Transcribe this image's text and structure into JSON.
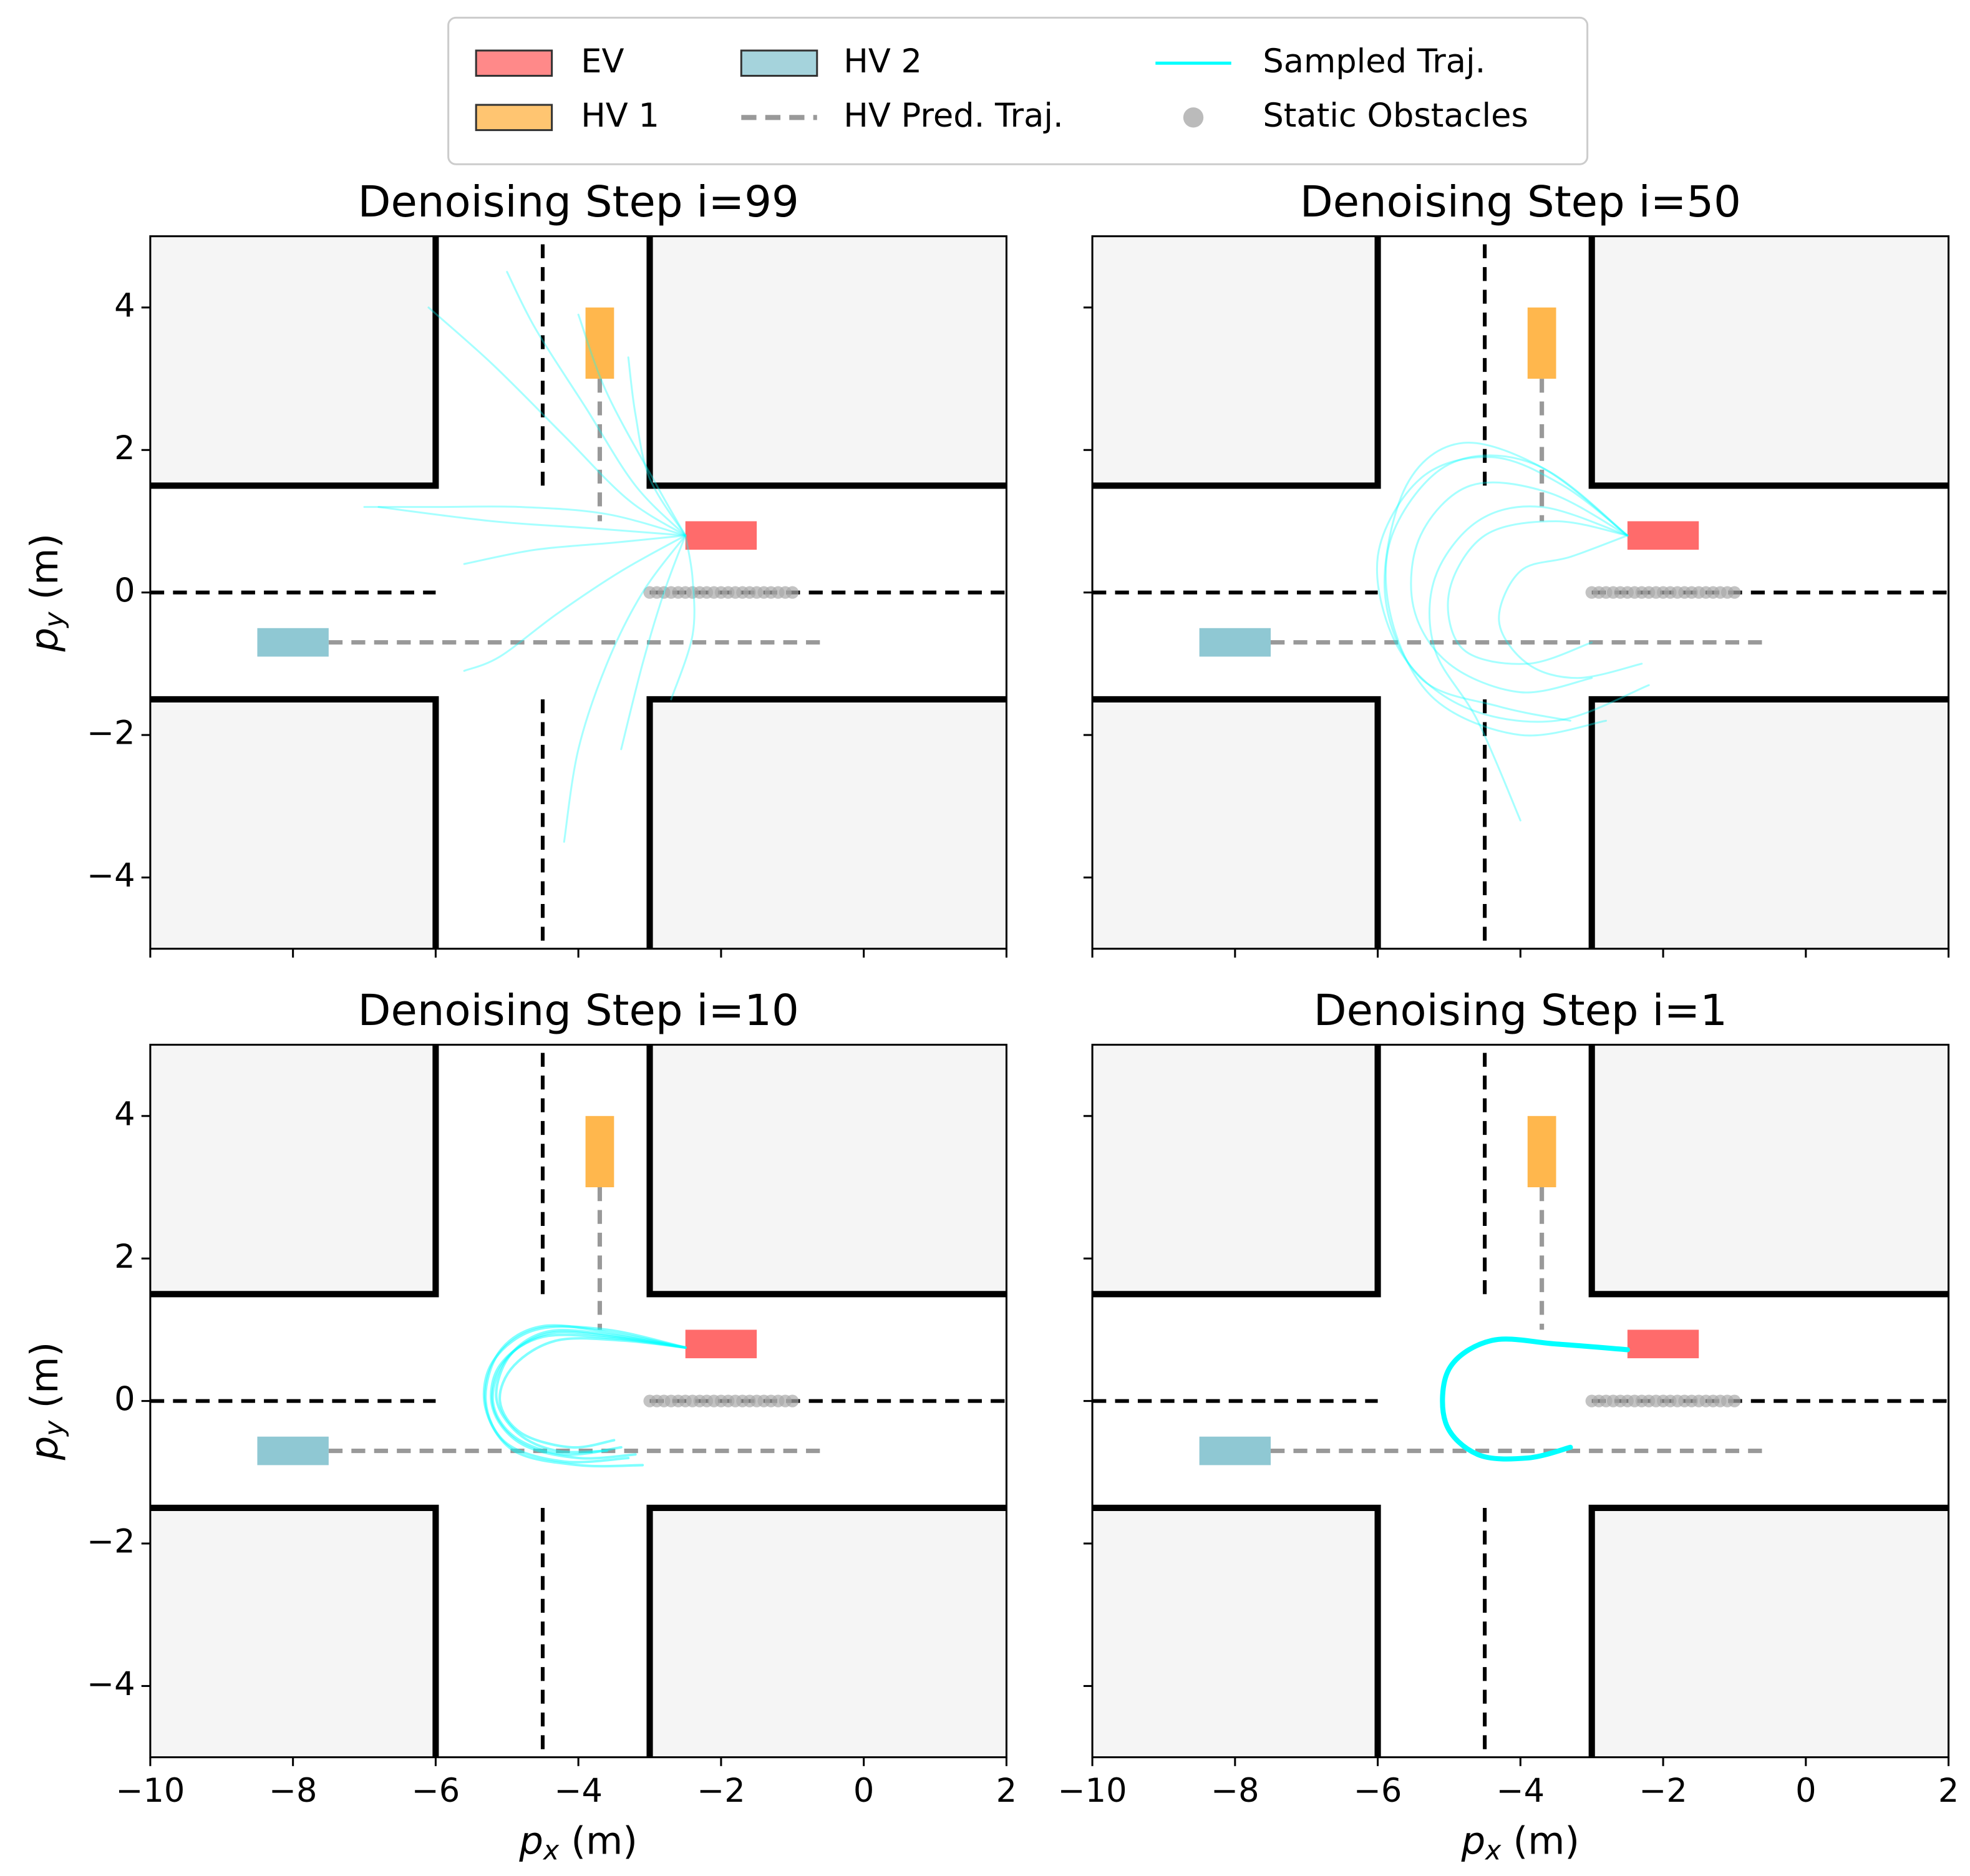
{
  "legend": [
    {
      "name": "EV",
      "color": "#ff6b6b",
      "kind": "patch"
    },
    {
      "name": "HV 1",
      "color": "#ffb74d",
      "kind": "patch"
    },
    {
      "name": "HV 2",
      "color": "#8fc8d3",
      "kind": "patch"
    },
    {
      "name": "HV Pred. Traj.",
      "color": "#999999",
      "kind": "dashed"
    },
    {
      "name": "Sampled Traj.",
      "color": "#00ffff",
      "kind": "line"
    },
    {
      "name": "Static Obstacles",
      "color": "#aaaaaa",
      "kind": "marker"
    }
  ],
  "scene": {
    "blocks": [
      [
        -10,
        -6,
        1.5,
        5
      ],
      [
        -3,
        2,
        1.5,
        5
      ],
      [
        -10,
        -6,
        -5,
        -1.5
      ],
      [
        -3,
        2,
        -5,
        -1.5
      ]
    ],
    "curbs": [
      {
        "x": [
          -10,
          -6,
          -6
        ],
        "y": [
          1.5,
          1.5,
          5
        ]
      },
      {
        "x": [
          2,
          -3,
          -3
        ],
        "y": [
          1.5,
          1.5,
          5
        ]
      },
      {
        "x": [
          -10,
          -6,
          -6
        ],
        "y": [
          -1.5,
          -1.5,
          -5
        ]
      },
      {
        "x": [
          2,
          -3,
          -3
        ],
        "y": [
          -1.5,
          -1.5,
          -5
        ]
      }
    ],
    "lanes": [
      {
        "x": [
          -10,
          -6
        ],
        "y": [
          0,
          0
        ]
      },
      {
        "x": [
          -3,
          2
        ],
        "y": [
          0,
          0
        ]
      },
      {
        "x": [
          -4.5,
          -4.5
        ],
        "y": [
          1.5,
          5
        ]
      },
      {
        "x": [
          -4.5,
          -4.5
        ],
        "y": [
          -1.5,
          -5
        ]
      }
    ],
    "vehicles": [
      {
        "legend": 0,
        "x": [
          -2.5,
          -1.5
        ],
        "y": [
          0.6,
          1.0
        ]
      },
      {
        "legend": 1,
        "x": [
          -3.9,
          -3.5
        ],
        "y": [
          3,
          4
        ]
      },
      {
        "legend": 2,
        "x": [
          -8.5,
          -7.5
        ],
        "y": [
          -0.9,
          -0.5
        ]
      }
    ],
    "predictions": [
      {
        "x": [
          -3.7,
          -3.7
        ],
        "y": [
          3,
          1
        ]
      },
      {
        "x": [
          -7.5,
          -0.6
        ],
        "y": [
          -0.7,
          -0.7
        ]
      }
    ],
    "obstacles": {
      "x": [
        -3.0,
        -2.9,
        -2.8,
        -2.7,
        -2.6,
        -2.5,
        -2.4,
        -2.3,
        -2.2,
        -2.1,
        -2.0,
        -1.9,
        -1.8,
        -1.7,
        -1.6,
        -1.5,
        -1.4,
        -1.3,
        -1.2,
        -1.1,
        -1.0
      ],
      "y": [
        0,
        0,
        0,
        0,
        0,
        0,
        0,
        0,
        0,
        0,
        0,
        0,
        0,
        0,
        0,
        0,
        0,
        0,
        0,
        0,
        0
      ]
    }
  },
  "chart_data": [
    {
      "type": "line",
      "title": "Denoising Step i=99",
      "xlim": [
        -10,
        2
      ],
      "ylim": [
        -5,
        5
      ],
      "xticks": [
        -10,
        -8,
        -6,
        -4,
        -2,
        0,
        2
      ],
      "yticks": [
        {
          "value": -4,
          "label": "−4"
        },
        {
          "value": -2,
          "label": "−2"
        },
        0,
        2,
        4
      ],
      "ylabel": [
        "p",
        "y",
        " (m)"
      ],
      "alpha": 0.35,
      "width": 1.5,
      "series": [
        {
          "x": [
            -2.5,
            -3.3,
            -4.2,
            -5.2,
            -6.1
          ],
          "y": [
            0.8,
            1.3,
            2.2,
            3.2,
            4.0
          ]
        },
        {
          "x": [
            -2.5,
            -3.2,
            -3.9,
            -4.6,
            -5.0
          ],
          "y": [
            0.8,
            1.5,
            2.6,
            3.7,
            4.5
          ]
        },
        {
          "x": [
            -2.5,
            -3.0,
            -3.2,
            -3.3
          ],
          "y": [
            0.8,
            1.6,
            2.5,
            3.3
          ]
        },
        {
          "x": [
            -2.5,
            -3.6,
            -4.8,
            -6.0,
            -7.0
          ],
          "y": [
            0.8,
            1.1,
            1.2,
            1.2,
            1.2
          ]
        },
        {
          "x": [
            -2.5,
            -3.5,
            -4.6,
            -5.6
          ],
          "y": [
            0.8,
            0.7,
            0.6,
            0.4
          ]
        },
        {
          "x": [
            -2.5,
            -3.4,
            -4.3,
            -5.1,
            -5.6
          ],
          "y": [
            0.8,
            0.3,
            -0.3,
            -0.9,
            -1.1
          ]
        },
        {
          "x": [
            -2.5,
            -3.1,
            -3.6,
            -4.0,
            -4.2
          ],
          "y": [
            0.8,
            0.0,
            -1.0,
            -2.2,
            -3.5
          ]
        },
        {
          "x": [
            -2.5,
            -2.8,
            -3.1,
            -3.4
          ],
          "y": [
            0.8,
            0.0,
            -1.0,
            -2.2
          ]
        },
        {
          "x": [
            -2.5,
            -2.4,
            -2.4,
            -2.7
          ],
          "y": [
            0.8,
            0.2,
            -0.6,
            -1.5
          ]
        },
        {
          "x": [
            -2.5,
            -2.9,
            -3.6,
            -4.0
          ],
          "y": [
            0.8,
            1.5,
            2.8,
            3.9
          ]
        },
        {
          "x": [
            -2.5,
            -3.8,
            -5.2,
            -6.8
          ],
          "y": [
            0.8,
            0.9,
            1.0,
            1.2
          ]
        }
      ]
    },
    {
      "type": "line",
      "title": "Denoising Step i=50",
      "xlim": [
        -10,
        2
      ],
      "ylim": [
        -5,
        5
      ],
      "xticks": [
        -10,
        -8,
        -6,
        -4,
        -2,
        0,
        2
      ],
      "yticks": [
        -4,
        -2,
        0,
        2,
        4
      ],
      "alpha": 0.35,
      "width": 1.5,
      "series": [
        {
          "x": [
            -2.5,
            -3.6,
            -4.7,
            -5.4,
            -5.5,
            -5.0,
            -4.0,
            -3.0
          ],
          "y": [
            0.8,
            1.4,
            1.5,
            0.8,
            -0.2,
            -1.0,
            -1.4,
            -1.2
          ]
        },
        {
          "x": [
            -2.5,
            -3.8,
            -5.0,
            -5.8,
            -5.8,
            -5.2,
            -4.0,
            -2.8
          ],
          "y": [
            0.8,
            1.8,
            1.8,
            0.8,
            -0.4,
            -1.5,
            -2.0,
            -1.8
          ]
        },
        {
          "x": [
            -2.5,
            -3.5,
            -4.5,
            -5.0,
            -4.8,
            -3.9,
            -3.0
          ],
          "y": [
            0.8,
            1.0,
            0.8,
            0.0,
            -0.8,
            -1.0,
            -0.7
          ]
        },
        {
          "x": [
            -2.5,
            -3.4,
            -4.4,
            -5.4,
            -6.0,
            -5.7,
            -4.8,
            -3.5,
            -2.2
          ],
          "y": [
            0.8,
            1.5,
            1.9,
            1.6,
            0.5,
            -0.8,
            -1.6,
            -1.8,
            -1.3
          ]
        },
        {
          "x": [
            -2.5,
            -3.7,
            -4.6,
            -5.2,
            -5.2,
            -4.6,
            -4.0
          ],
          "y": [
            0.8,
            1.2,
            1.0,
            0.2,
            -0.8,
            -1.8,
            -3.2
          ]
        },
        {
          "x": [
            -2.5,
            -3.3,
            -4.0,
            -4.3,
            -3.9,
            -3.2,
            -2.3
          ],
          "y": [
            0.8,
            0.5,
            0.3,
            -0.4,
            -1.0,
            -1.2,
            -1.0
          ]
        },
        {
          "x": [
            -2.5,
            -3.6,
            -4.8,
            -5.6,
            -5.9,
            -5.4,
            -4.3,
            -3.3
          ],
          "y": [
            0.8,
            1.7,
            2.1,
            1.5,
            0.0,
            -1.2,
            -1.6,
            -1.8
          ]
        }
      ]
    },
    {
      "type": "line",
      "title": "Denoising Step i=10",
      "xlim": [
        -10,
        2
      ],
      "ylim": [
        -5,
        5
      ],
      "xticks": [
        {
          "value": -10,
          "label": "−10"
        },
        {
          "value": -8,
          "label": "−8"
        },
        {
          "value": -6,
          "label": "−6"
        },
        {
          "value": -4,
          "label": "−4"
        },
        {
          "value": -2,
          "label": "−2"
        },
        0,
        2
      ],
      "yticks": [
        {
          "value": -4,
          "label": "−4"
        },
        {
          "value": -2,
          "label": "−2"
        },
        0,
        2,
        4
      ],
      "xlabel": [
        "p",
        "x",
        " (m)"
      ],
      "ylabel": [
        "p",
        "y",
        " (m)"
      ],
      "alpha": 0.5,
      "width": 2,
      "series": [
        {
          "x": [
            -2.5,
            -3.5,
            -4.4,
            -5.0,
            -5.2,
            -4.9,
            -4.2,
            -3.4
          ],
          "y": [
            0.75,
            0.9,
            0.95,
            0.6,
            0.0,
            -0.5,
            -0.75,
            -0.65
          ]
        },
        {
          "x": [
            -2.5,
            -3.5,
            -4.5,
            -5.1,
            -5.3,
            -5.0,
            -4.2,
            -3.3
          ],
          "y": [
            0.75,
            0.95,
            1.05,
            0.7,
            0.0,
            -0.6,
            -0.85,
            -0.8
          ]
        },
        {
          "x": [
            -2.5,
            -3.4,
            -4.3,
            -4.9,
            -5.1,
            -4.8,
            -4.1,
            -3.5
          ],
          "y": [
            0.75,
            0.85,
            0.85,
            0.5,
            0.0,
            -0.45,
            -0.65,
            -0.55
          ]
        },
        {
          "x": [
            -2.5,
            -3.6,
            -4.6,
            -5.2,
            -5.3,
            -4.9,
            -4.0,
            -3.1
          ],
          "y": [
            0.75,
            1.0,
            1.0,
            0.55,
            -0.1,
            -0.7,
            -0.9,
            -0.9
          ]
        },
        {
          "x": [
            -2.5,
            -3.5,
            -4.4,
            -4.95,
            -5.15,
            -4.85,
            -4.3,
            -3.6
          ],
          "y": [
            0.75,
            0.92,
            0.98,
            0.65,
            0.05,
            -0.45,
            -0.7,
            -0.7
          ]
        },
        {
          "x": [
            -2.5,
            -3.5,
            -4.5,
            -5.1,
            -5.2,
            -4.8,
            -4.0,
            -3.2
          ],
          "y": [
            0.75,
            0.88,
            0.9,
            0.5,
            -0.1,
            -0.6,
            -0.8,
            -0.75
          ]
        }
      ]
    },
    {
      "type": "line",
      "title": "Denoising Step i=1",
      "xlim": [
        -10,
        2
      ],
      "ylim": [
        -5,
        5
      ],
      "xticks": [
        {
          "value": -10,
          "label": "−10"
        },
        {
          "value": -8,
          "label": "−8"
        },
        {
          "value": -6,
          "label": "−6"
        },
        {
          "value": -4,
          "label": "−4"
        },
        {
          "value": -2,
          "label": "−2"
        },
        0,
        2
      ],
      "yticks": [
        -4,
        -2,
        0,
        2,
        4
      ],
      "xlabel": [
        "p",
        "x",
        " (m)"
      ],
      "alpha": 1,
      "width": 4,
      "series": [
        {
          "x": [
            -2.5,
            -3.5,
            -4.4,
            -5.0,
            -5.05,
            -4.6,
            -3.9,
            -3.3
          ],
          "y": [
            0.72,
            0.8,
            0.85,
            0.45,
            -0.3,
            -0.75,
            -0.8,
            -0.65
          ]
        }
      ]
    }
  ]
}
